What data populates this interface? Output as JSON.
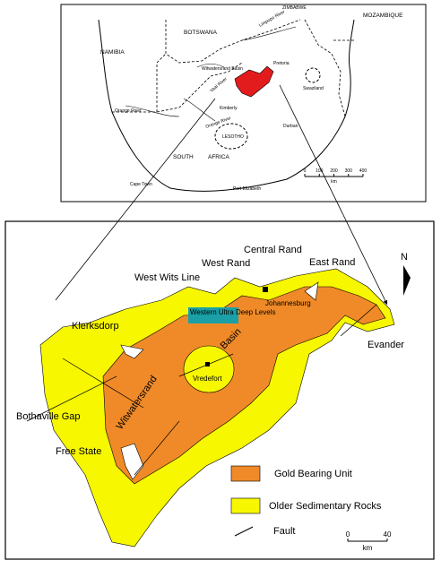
{
  "top_map": {
    "labels": {
      "zimbabwe": "ZIMBABWE",
      "mozambique": "MOZAMBIQUE",
      "namibia": "NAMIBIA",
      "botswana": "BOTSWANA",
      "limpopo": "Limpopo River",
      "pretoria": "Pretoria",
      "basin": "Witwatersrand Basin",
      "kimberly": "Kimberly",
      "vaal": "Vaal River",
      "orange": "Orange River",
      "orange_mouth": "Orange River",
      "lesotho": "LESOTHO",
      "durban": "Durban",
      "swaziland": "Swaziland",
      "south": "SOUTH",
      "africa": "AFRICA",
      "cape_town": "Cape Town",
      "port_elizabeth": "Port Elizabeth"
    },
    "scale": {
      "ticks": [
        0,
        100,
        200,
        300,
        400
      ],
      "unit": "km"
    }
  },
  "main_map": {
    "labels": {
      "central_rand": "Central Rand",
      "west_rand": "West Rand",
      "east_rand": "East Rand",
      "west_wits": "West Wits Line",
      "wudl": "Western Ultra Deep Levels",
      "johannesburg": "Johannesburg",
      "klerksdorp": "Klerksdorp",
      "evander": "Evander",
      "basin": "Basin",
      "witwatersrand": "Witwatersrand",
      "vredefort": "Vredefort",
      "bothaville": "Bothaville Gap",
      "free_state": "Free State",
      "north": "N"
    },
    "legend": {
      "gold": "Gold Bearing Unit",
      "older": "Older Sedimentary Rocks",
      "fault": "Fault"
    },
    "scale": {
      "ticks": [
        0,
        40
      ],
      "unit": "km"
    }
  }
}
